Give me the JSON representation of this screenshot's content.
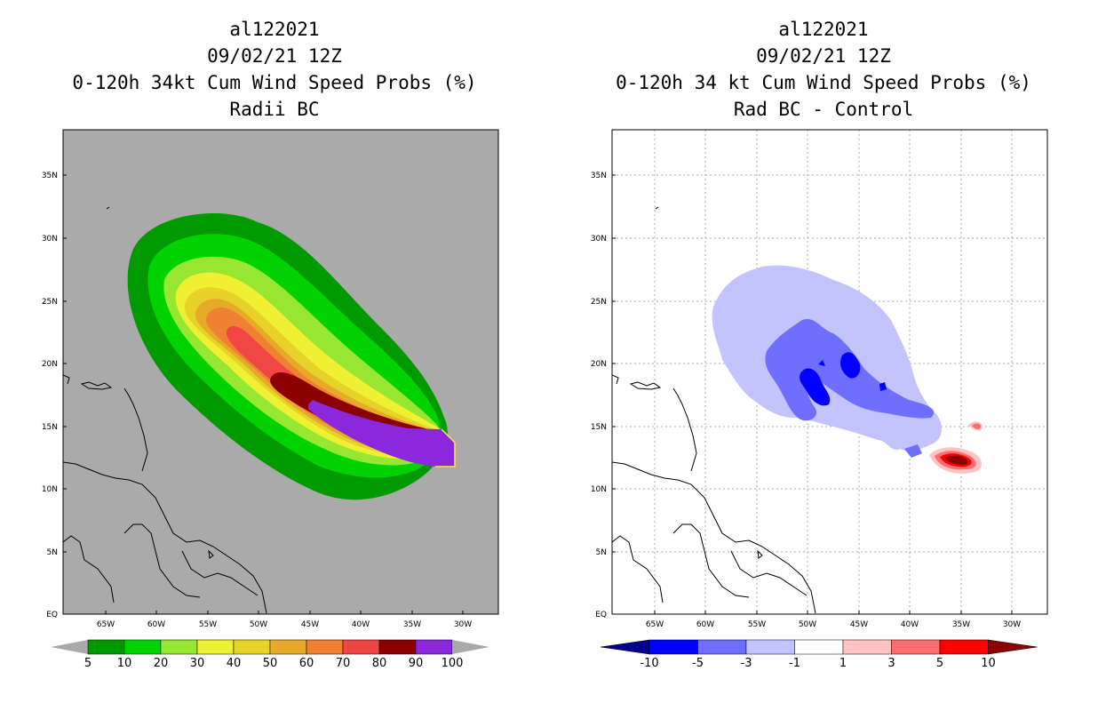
{
  "left": {
    "title_line1": "al122021",
    "title_line2": "09/02/21 12Z",
    "title_line3": "0-120h 34kt Cum Wind Speed Probs (%)",
    "title_line4": "Radii BC",
    "colorbar_labels": [
      "5",
      "10",
      "20",
      "30",
      "40",
      "50",
      "60",
      "70",
      "80",
      "90",
      "100"
    ],
    "colorbar_colors": [
      "#009a00",
      "#00d200",
      "#96e632",
      "#f0f032",
      "#e6d228",
      "#e6aa28",
      "#ee8232",
      "#f04646",
      "#8c0000",
      "#8c28dc"
    ]
  },
  "right": {
    "title_line1": "al122021",
    "title_line2": "09/02/21 12Z",
    "title_line3": "0-120h 34 kt Cum Wind Speed Probs (%)",
    "title_line4": "Rad BC - Control",
    "colorbar_labels": [
      "-10",
      "-5",
      "-3",
      "-1",
      "1",
      "3",
      "5",
      "10"
    ],
    "colorbar_colors": [
      "#00008c",
      "#0000ff",
      "#6e6eff",
      "#c3c3ff",
      "#ffffff",
      "#ffc3c3",
      "#ff6e6e",
      "#ff0000",
      "#8c0000"
    ]
  },
  "axes": {
    "lat_labels": [
      "35N",
      "30N",
      "25N",
      "20N",
      "15N",
      "10N",
      "5N",
      "EQ"
    ],
    "lon_labels": [
      "65W",
      "60W",
      "55W",
      "50W",
      "45W",
      "40W",
      "35W",
      "30W"
    ]
  }
}
